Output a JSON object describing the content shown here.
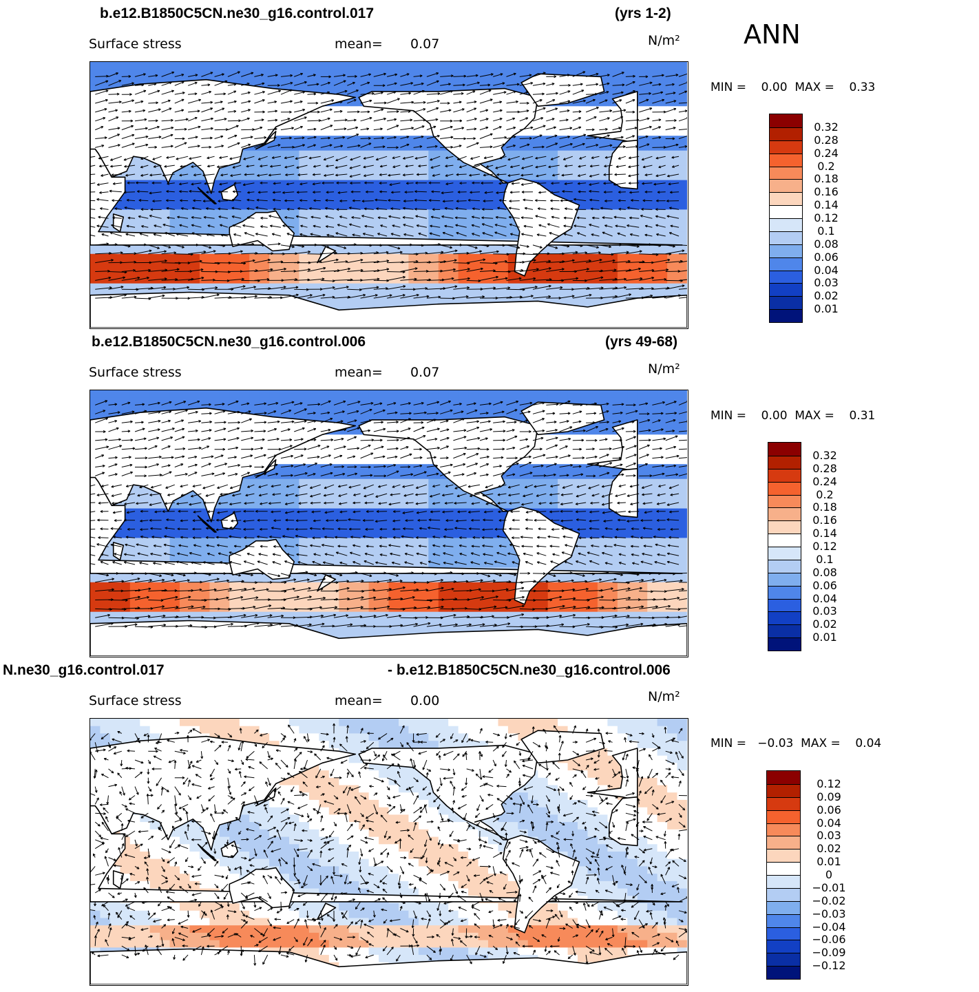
{
  "season": "ANN",
  "panels": [
    {
      "id": "top",
      "case_title": "b.e12.B1850C5CN.ne30_g16.control.017",
      "years": "(yrs 1-2)",
      "variable": "Surface stress",
      "mean_label": "mean=",
      "mean_value": "0.07",
      "units": "N/m²",
      "min_max": "MIN =    0.00  MAX =    0.33",
      "field_type": "magnitude",
      "colorbar_labels": [
        "0.32",
        "0.28",
        "0.24",
        "0.2",
        "0.18",
        "0.16",
        "0.14",
        "0.12",
        "0.1",
        "0.08",
        "0.06",
        "0.04",
        "0.03",
        "0.02",
        "0.01"
      ]
    },
    {
      "id": "middle",
      "case_title": "b.e12.B1850C5CN.ne30_g16.control.006",
      "years": "(yrs 49-68)",
      "variable": "Surface stress",
      "mean_label": "mean=",
      "mean_value": "0.07",
      "units": "N/m²",
      "min_max": "MIN =    0.00  MAX =    0.31",
      "field_type": "magnitude",
      "colorbar_labels": [
        "0.32",
        "0.28",
        "0.24",
        "0.2",
        "0.18",
        "0.16",
        "0.14",
        "0.12",
        "0.1",
        "0.08",
        "0.06",
        "0.04",
        "0.03",
        "0.02",
        "0.01"
      ]
    },
    {
      "id": "bottom",
      "case_title": "N.ne30_g16.control.017",
      "years": "- b.e12.B1850C5CN.ne30_g16.control.006",
      "variable": "Surface stress",
      "mean_label": "mean=",
      "mean_value": "0.00",
      "units": "N/m²",
      "min_max": "MIN =   −0.03  MAX =    0.04",
      "field_type": "difference",
      "colorbar_labels": [
        "0.12",
        "0.09",
        "0.06",
        "0.04",
        "0.03",
        "0.02",
        "0.01",
        "0",
        "−0.01",
        "−0.02",
        "−0.03",
        "−0.04",
        "−0.06",
        "−0.09",
        "−0.12"
      ]
    }
  ],
  "colors": {
    "magnitude_scale": [
      "#8b0000",
      "#b22000",
      "#d63a10",
      "#f5622e",
      "#f78a5a",
      "#f7b08a",
      "#fcd6bd",
      "#ffffff",
      "#d6e6f9",
      "#b3cdf3",
      "#7faeee",
      "#4f86ea",
      "#2b5fe0",
      "#1240c4",
      "#0a2fa5",
      "#00137a"
    ],
    "difference_scale": [
      "#8b0000",
      "#b22000",
      "#d63a10",
      "#f5622e",
      "#f78a5a",
      "#f7b08a",
      "#fcd6bd",
      "#ffffff",
      "#d6e6f9",
      "#b3cdf3",
      "#7faeee",
      "#4f86ea",
      "#2b5fe0",
      "#1240c4",
      "#0a2fa5",
      "#00137a"
    ],
    "land": "#ffffff",
    "coastline": "#000000",
    "vector": "#000000"
  }
}
